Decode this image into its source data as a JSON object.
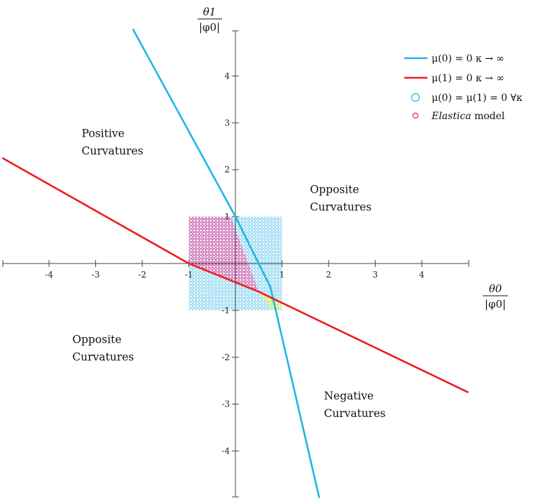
{
  "chart_data": {
    "type": "line",
    "xlim": [
      -5,
      5
    ],
    "ylim": [
      -5,
      5
    ],
    "x_ticks": [
      -4,
      -3,
      -2,
      -1,
      1,
      2,
      3,
      4
    ],
    "y_ticks": [
      4,
      3,
      2,
      1,
      -1,
      -2,
      -3,
      -4
    ],
    "xlabel": {
      "numerator": "θ0",
      "denominator": "|φ0|"
    },
    "ylabel": {
      "numerator": "θ1",
      "denominator": "|φ0|"
    },
    "grid": false,
    "legend_position": "top-right",
    "series": [
      {
        "name": "μ(0) = 0  κ → ∞",
        "kind": "line",
        "color": "#1fb5e6",
        "points": [
          [
            -2.2,
            5.0
          ],
          [
            0.0,
            1.0
          ],
          [
            0.75,
            -0.5
          ],
          [
            1.8,
            -5.0
          ]
        ]
      },
      {
        "name": "μ(1) = 0  κ → ∞",
        "kind": "line",
        "color": "#ee1c1c",
        "points": [
          [
            -5.0,
            2.25
          ],
          [
            -1.0,
            0.0
          ],
          [
            0.5,
            -0.6
          ],
          [
            5.0,
            -2.75
          ]
        ]
      },
      {
        "name": "μ(0) = μ(1) = 0  ∀κ",
        "kind": "marker-region",
        "color": "#6cc8ec",
        "bounds": {
          "x": [
            -1,
            1
          ],
          "y": [
            -1,
            1
          ]
        }
      },
      {
        "name": "Elastica model",
        "kind": "marker-region",
        "color": "#e0218a",
        "vertices": [
          [
            -1.0,
            1.0
          ],
          [
            -0.1,
            1.0
          ],
          [
            0.5,
            -0.6
          ],
          [
            -1.0,
            0.0
          ]
        ]
      },
      {
        "name": "",
        "kind": "marker-region",
        "color": "#d6f03a",
        "vertices": [
          [
            0.5,
            -0.6
          ],
          [
            0.99,
            -0.83
          ],
          [
            0.99,
            -1.0
          ],
          [
            0.78,
            -1.0
          ]
        ]
      }
    ],
    "legend": [
      {
        "label_pre": "",
        "label_main": "μ(0) = 0  κ → ∞",
        "marker": "line",
        "color": "#1fb5e6"
      },
      {
        "label_pre": "",
        "label_main": "μ(1) = 0  κ → ∞",
        "marker": "line",
        "color": "#ee1c1c"
      },
      {
        "label_pre": "",
        "label_main": "μ(0) = μ(1) = 0   ∀κ",
        "marker": "circle",
        "color": "#1fb5e6"
      },
      {
        "label_pre": "Elastica",
        "label_main": " model",
        "marker": "circle-small",
        "color": "#e0218a"
      }
    ],
    "annotations": [
      {
        "lines": [
          "Positive",
          "Curvatures"
        ],
        "at": [
          -3.3,
          2.7
        ]
      },
      {
        "lines": [
          "Opposite",
          "Curvatures"
        ],
        "at": [
          1.6,
          1.5
        ]
      },
      {
        "lines": [
          "Opposite",
          "Curvatures"
        ],
        "at": [
          -3.5,
          -1.7
        ]
      },
      {
        "lines": [
          "Negative",
          "Curvatures"
        ],
        "at": [
          1.9,
          -2.9
        ]
      }
    ]
  }
}
